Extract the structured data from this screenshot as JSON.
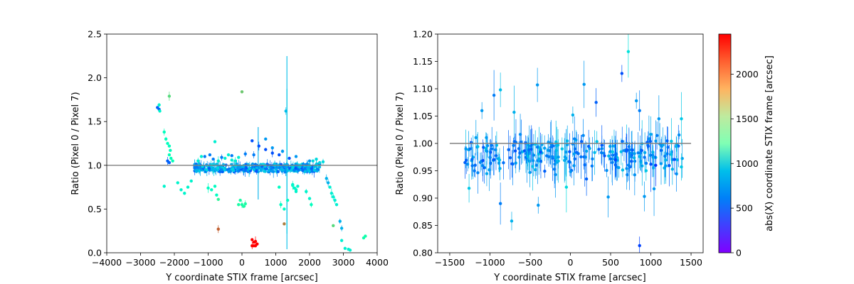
{
  "chart_data": [
    {
      "type": "scatter",
      "panel": "left",
      "xlabel": "Y coordinate STIX frame [arcsec]",
      "ylabel": "Ratio (Pixel 0 / Pixel 7)",
      "xlim": [
        -4000,
        4000
      ],
      "ylim": [
        0,
        2.5
      ],
      "xticks": [
        -4000,
        -3000,
        -2000,
        -1000,
        0,
        1000,
        2000,
        3000,
        4000
      ],
      "xtick_labels": [
        "−4000",
        "−3000",
        "−2000",
        "−1000",
        "0",
        "1000",
        "2000",
        "3000",
        "4000"
      ],
      "yticks": [
        0.0,
        0.5,
        1.0,
        1.5,
        2.0,
        2.5
      ],
      "ytick_labels": [
        "0.0",
        "0.5",
        "1.0",
        "1.5",
        "2.0",
        "2.5"
      ],
      "reference_line": {
        "y": 1.0,
        "x_range": [
          -4000,
          4000
        ],
        "color": "#808080"
      },
      "color_by": "abs(X) coordinate STIX frame [arcsec]",
      "clusters": [
        {
          "x": [
            -2500,
            -2450
          ],
          "y": [
            1.66,
            1.64
          ],
          "c": 300
        },
        {
          "x": [
            -2450,
            -2430
          ],
          "y": [
            1.69,
            1.62
          ],
          "c": 1000
        },
        {
          "x": [
            -2150
          ],
          "y": [
            1.79
          ],
          "c": 1650
        },
        {
          "x": [
            -2300,
            -2250,
            -2200,
            -2150,
            -2120
          ],
          "y": [
            1.38,
            1.3,
            1.25,
            1.22,
            1.17
          ],
          "c": 1150
        },
        {
          "x": [
            -2150,
            -2100,
            -2050
          ],
          "y": [
            1.12,
            1.08,
            1.05
          ],
          "c": 1200
        },
        {
          "x": [
            -2200,
            -2150
          ],
          "y": [
            1.05,
            1.03
          ],
          "c": 300
        },
        {
          "x": [
            -2300,
            -1900,
            -1800,
            -1700,
            -1600,
            -1500
          ],
          "y": [
            0.76,
            0.8,
            0.72,
            0.68,
            0.75,
            0.82
          ],
          "c": 1000
        },
        {
          "x": [
            -1000,
            -900,
            -800,
            -750
          ],
          "y": [
            0.74,
            0.72,
            0.76,
            0.66
          ],
          "c": 1100
        },
        {
          "x": [
            -1300,
            -1200,
            -800,
            -700,
            -500,
            -400,
            -300,
            -200,
            -100
          ],
          "y": [
            1.05,
            1.1,
            1.27,
            1.05,
            1.08,
            1.12,
            1.06,
            1.05,
            1.09
          ],
          "c": 950
        },
        {
          "x": [
            -1100,
            -950,
            -850,
            -600,
            -300,
            100,
            350
          ],
          "y": [
            1.1,
            1.12,
            1.07,
            1.09,
            1.11,
            1.13,
            1.12
          ],
          "c": 400
        },
        {
          "x": [
            -700
          ],
          "y": [
            0.61
          ],
          "c": 1450
        },
        {
          "x": [
            -100,
            -50,
            0,
            50,
            100
          ],
          "y": [
            0.55,
            0.6,
            0.55,
            0.53,
            0.56
          ],
          "c": 1350
        },
        {
          "x": [
            0
          ],
          "y": [
            1.84
          ],
          "c": 1750
        },
        {
          "x": [
            -700
          ],
          "y": [
            0.27
          ],
          "c": 2150
        },
        {
          "x": [
            300,
            350,
            400,
            450,
            300,
            350,
            400
          ],
          "y": [
            0.15,
            0.12,
            0.13,
            0.1,
            0.08,
            0.08,
            0.08
          ],
          "c": 2450
        },
        {
          "x": [
            1250
          ],
          "y": [
            0.33
          ],
          "c": 2050
        },
        {
          "x": [
            1100,
            1150,
            1250,
            1350,
            1500,
            1600
          ],
          "y": [
            0.75,
            0.55,
            0.5,
            0.6,
            0.77,
            0.72
          ],
          "c": 1100
        },
        {
          "x": [
            1500,
            1550,
            1600,
            1650
          ],
          "y": [
            0.78,
            0.74,
            0.7,
            0.76
          ],
          "c": 1000
        },
        {
          "x": [
            1300
          ],
          "y": [
            1.62
          ],
          "c": 650
        },
        {
          "x": [
            300,
            500,
            700,
            900,
            1100,
            1400
          ],
          "y": [
            1.28,
            1.22,
            1.18,
            1.14,
            1.12,
            1.08
          ],
          "c": 250
        },
        {
          "x": [
            700,
            900,
            1200,
            1600,
            2000
          ],
          "y": [
            1.3,
            1.2,
            1.16,
            1.1,
            1.05
          ],
          "c": 500
        },
        {
          "x": [
            1900,
            2000
          ],
          "y": [
            0.7,
            0.62
          ],
          "c": 1000
        },
        {
          "x": [
            2100,
            2200,
            2300,
            2400
          ],
          "y": [
            1.05,
            1.07,
            1.03,
            1.04
          ],
          "c": 800
        },
        {
          "x": [
            2600,
            2650,
            2700,
            2750,
            2800
          ],
          "y": [
            0.75,
            0.68,
            0.64,
            0.6,
            0.55
          ],
          "c": 950
        },
        {
          "x": [
            2500,
            2550
          ],
          "y": [
            0.85,
            0.8
          ],
          "c": 600
        },
        {
          "x": [
            2700
          ],
          "y": [
            0.31
          ],
          "c": 1650
        },
        {
          "x": [
            2900,
            2950
          ],
          "y": [
            0.36,
            0.28
          ],
          "c": 600
        },
        {
          "x": [
            2950,
            3050,
            3150,
            3200
          ],
          "y": [
            0.14,
            0.05,
            0.04,
            0.03
          ],
          "c": 950
        },
        {
          "x": [
            3600,
            3650
          ],
          "y": [
            0.17,
            0.19
          ],
          "c": 1300
        },
        {
          "x": [
            2050
          ],
          "y": [
            0.55
          ],
          "c": 1150
        }
      ]
    },
    {
      "type": "scatter",
      "panel": "right",
      "xlabel": "Y coordinate STIX frame [arcsec]",
      "ylabel": "Ratio (Pixel 0 / Pixel 7)",
      "xlim": [
        -1650,
        1650
      ],
      "ylim": [
        0.8,
        1.2
      ],
      "xticks": [
        -1500,
        -1000,
        -500,
        0,
        500,
        1000,
        1500
      ],
      "xtick_labels": [
        "−1500",
        "−1000",
        "−500",
        "0",
        "500",
        "1000",
        "1500"
      ],
      "yticks": [
        0.8,
        0.85,
        0.9,
        0.95,
        1.0,
        1.05,
        1.1,
        1.15,
        1.2
      ],
      "ytick_labels": [
        "0.80",
        "0.85",
        "0.90",
        "0.95",
        "1.00",
        "1.05",
        "1.10",
        "1.15",
        "1.20"
      ],
      "reference_line": {
        "y": 1.0,
        "x_range": [
          -1500,
          1500
        ],
        "color": "#808080"
      },
      "color_by": "abs(X) coordinate STIX frame [arcsec]",
      "points": [
        {
          "x": -950,
          "y": 1.088,
          "c": 400
        },
        {
          "x": -870,
          "y": 1.098,
          "c": 650
        },
        {
          "x": -410,
          "y": 1.107,
          "c": 500
        },
        {
          "x": 170,
          "y": 1.108,
          "c": 500
        },
        {
          "x": 640,
          "y": 1.128,
          "c": 250
        },
        {
          "x": 720,
          "y": 1.168,
          "c": 850
        },
        {
          "x": 820,
          "y": 1.078,
          "c": 500
        },
        {
          "x": 860,
          "y": 1.06,
          "c": 400
        },
        {
          "x": 320,
          "y": 1.075,
          "c": 300
        },
        {
          "x": 30,
          "y": 1.052,
          "c": 600
        },
        {
          "x": -1100,
          "y": 1.06,
          "c": 500
        },
        {
          "x": -700,
          "y": 1.057,
          "c": 600
        },
        {
          "x": 1100,
          "y": 1.045,
          "c": 500
        },
        {
          "x": 1380,
          "y": 1.045,
          "c": 700
        },
        {
          "x": -730,
          "y": 0.858,
          "c": 600
        },
        {
          "x": -400,
          "y": 0.887,
          "c": 500
        },
        {
          "x": 860,
          "y": 0.813,
          "c": 200
        },
        {
          "x": -1260,
          "y": 0.918,
          "c": 700
        },
        {
          "x": -870,
          "y": 0.89,
          "c": 400
        },
        {
          "x": 470,
          "y": 0.902,
          "c": 500
        },
        {
          "x": 920,
          "y": 0.903,
          "c": 500
        },
        {
          "x": -50,
          "y": 0.92,
          "c": 800
        },
        {
          "x": 1380,
          "y": 0.957,
          "c": 700
        },
        {
          "x": 200,
          "y": 0.935,
          "c": 300
        },
        {
          "x": 1040,
          "y": 0.917,
          "c": 500
        },
        {
          "x": -150,
          "y": 0.975,
          "c": 500
        },
        {
          "x": 1000,
          "y": 0.962,
          "c": 250
        },
        {
          "x": 1060,
          "y": 0.96,
          "c": 150
        },
        {
          "x": -1310,
          "y": 0.965,
          "c": 300
        },
        {
          "x": 560,
          "y": 0.97,
          "c": 200
        }
      ],
      "dense_band": {
        "x_range": [
          -1300,
          1400
        ],
        "y_center": 0.98,
        "y_spread": 0.04,
        "c_range": [
          250,
          700
        ],
        "count": 260
      }
    }
  ],
  "colorbar": {
    "label": "abs(X) coordinate STIX frame [arcsec]",
    "range": [
      0,
      2450
    ],
    "ticks": [
      0,
      500,
      1000,
      1500,
      2000
    ],
    "tick_labels": [
      "0",
      "500",
      "1000",
      "1500",
      "2000"
    ],
    "colormap": "rainbow"
  }
}
